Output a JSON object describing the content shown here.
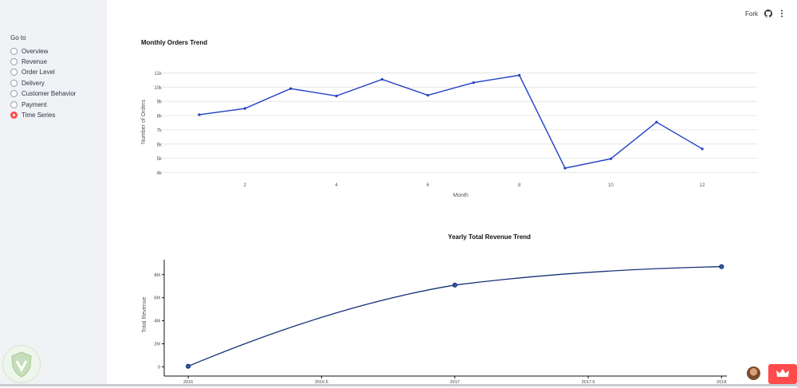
{
  "sidebar": {
    "title": "Go to",
    "items": [
      {
        "label": "Overview",
        "selected": false
      },
      {
        "label": "Revenue",
        "selected": false
      },
      {
        "label": "Order Level",
        "selected": false
      },
      {
        "label": "Delivery",
        "selected": false
      },
      {
        "label": "Customer Behavior",
        "selected": false
      },
      {
        "label": "Payment",
        "selected": false
      },
      {
        "label": "Time Series",
        "selected": true
      }
    ]
  },
  "toolbar": {
    "fork_label": "Fork",
    "icons": [
      "github-icon",
      "more-vertical-icon"
    ]
  },
  "chart_data": [
    {
      "type": "line",
      "title": "Monthly Orders Trend",
      "xlabel": "Month",
      "ylabel": "Number of Orders",
      "x": [
        1,
        2,
        3,
        4,
        5,
        6,
        7,
        8,
        9,
        10,
        11,
        12
      ],
      "values": [
        8060,
        8500,
        9900,
        9380,
        10550,
        9430,
        10320,
        10840,
        4300,
        4960,
        7540,
        5660
      ],
      "x_ticks": [
        "2",
        "4",
        "6",
        "8",
        "10",
        "12"
      ],
      "y_ticks": [
        "4k",
        "5k",
        "6k",
        "7k",
        "8k",
        "9k",
        "10k",
        "11k"
      ],
      "ylim": [
        3800,
        11200
      ],
      "xlim": [
        0.2,
        13.2
      ],
      "grid": true,
      "color": "#1f3fc4"
    },
    {
      "type": "line",
      "title": "Yearly Total Revenue Trend",
      "xlabel": "",
      "ylabel": "Total Revenue",
      "x": [
        2016,
        2017,
        2018
      ],
      "values": [
        50000,
        7100000,
        8700000
      ],
      "x_ticks": [
        "2016",
        "2016.5",
        "2017",
        "2017.5",
        "2018"
      ],
      "y_ticks": [
        "0",
        "2M",
        "4M",
        "6M",
        "8M"
      ],
      "ylim": [
        -800000,
        9300000
      ],
      "xlim": [
        2015.91,
        2018.02
      ],
      "grid": false,
      "color": "#15307a"
    }
  ]
}
